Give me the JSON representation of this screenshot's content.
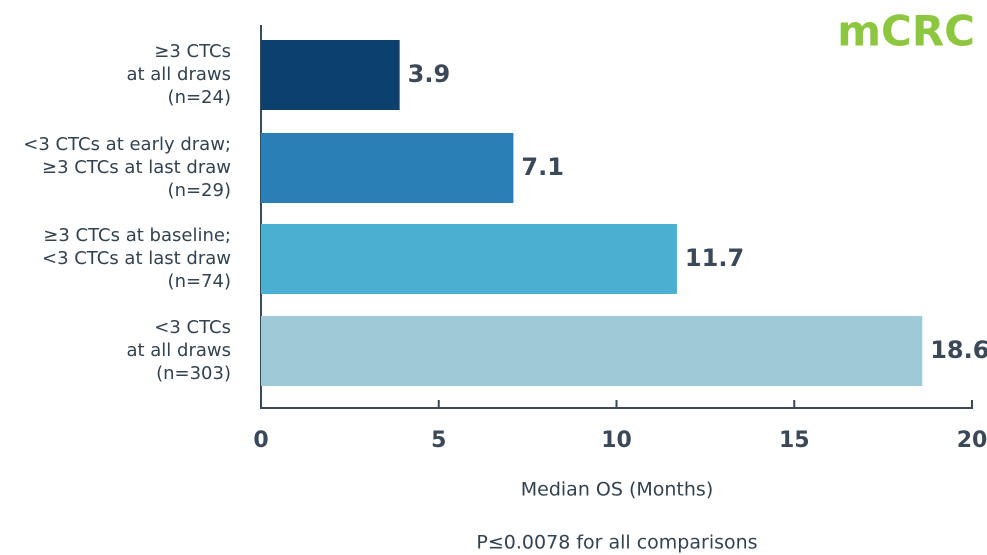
{
  "chart_data": {
    "type": "barh",
    "badge": "mCRC",
    "categories": [
      [
        "≥3 CTCs",
        "at all draws",
        "(n=24)"
      ],
      [
        "<3 CTCs at early draw;",
        "≥3 CTCs at last draw",
        "(n=29)"
      ],
      [
        "≥3 CTCs at baseline;",
        "<3 CTCs at last draw",
        "(n=74)"
      ],
      [
        "<3 CTCs",
        "at all draws",
        "(n=303)"
      ]
    ],
    "values": [
      3.9,
      7.1,
      11.7,
      18.6
    ],
    "colors": [
      "#0b416c",
      "#2a80b6",
      "#4aafd1",
      "#9ecad8"
    ],
    "xlim": [
      0,
      20
    ],
    "xticks": [
      0,
      5,
      10,
      15,
      20
    ],
    "xlabel": "Median OS (Months)",
    "note": "P≤0.0078 for all comparisons"
  }
}
